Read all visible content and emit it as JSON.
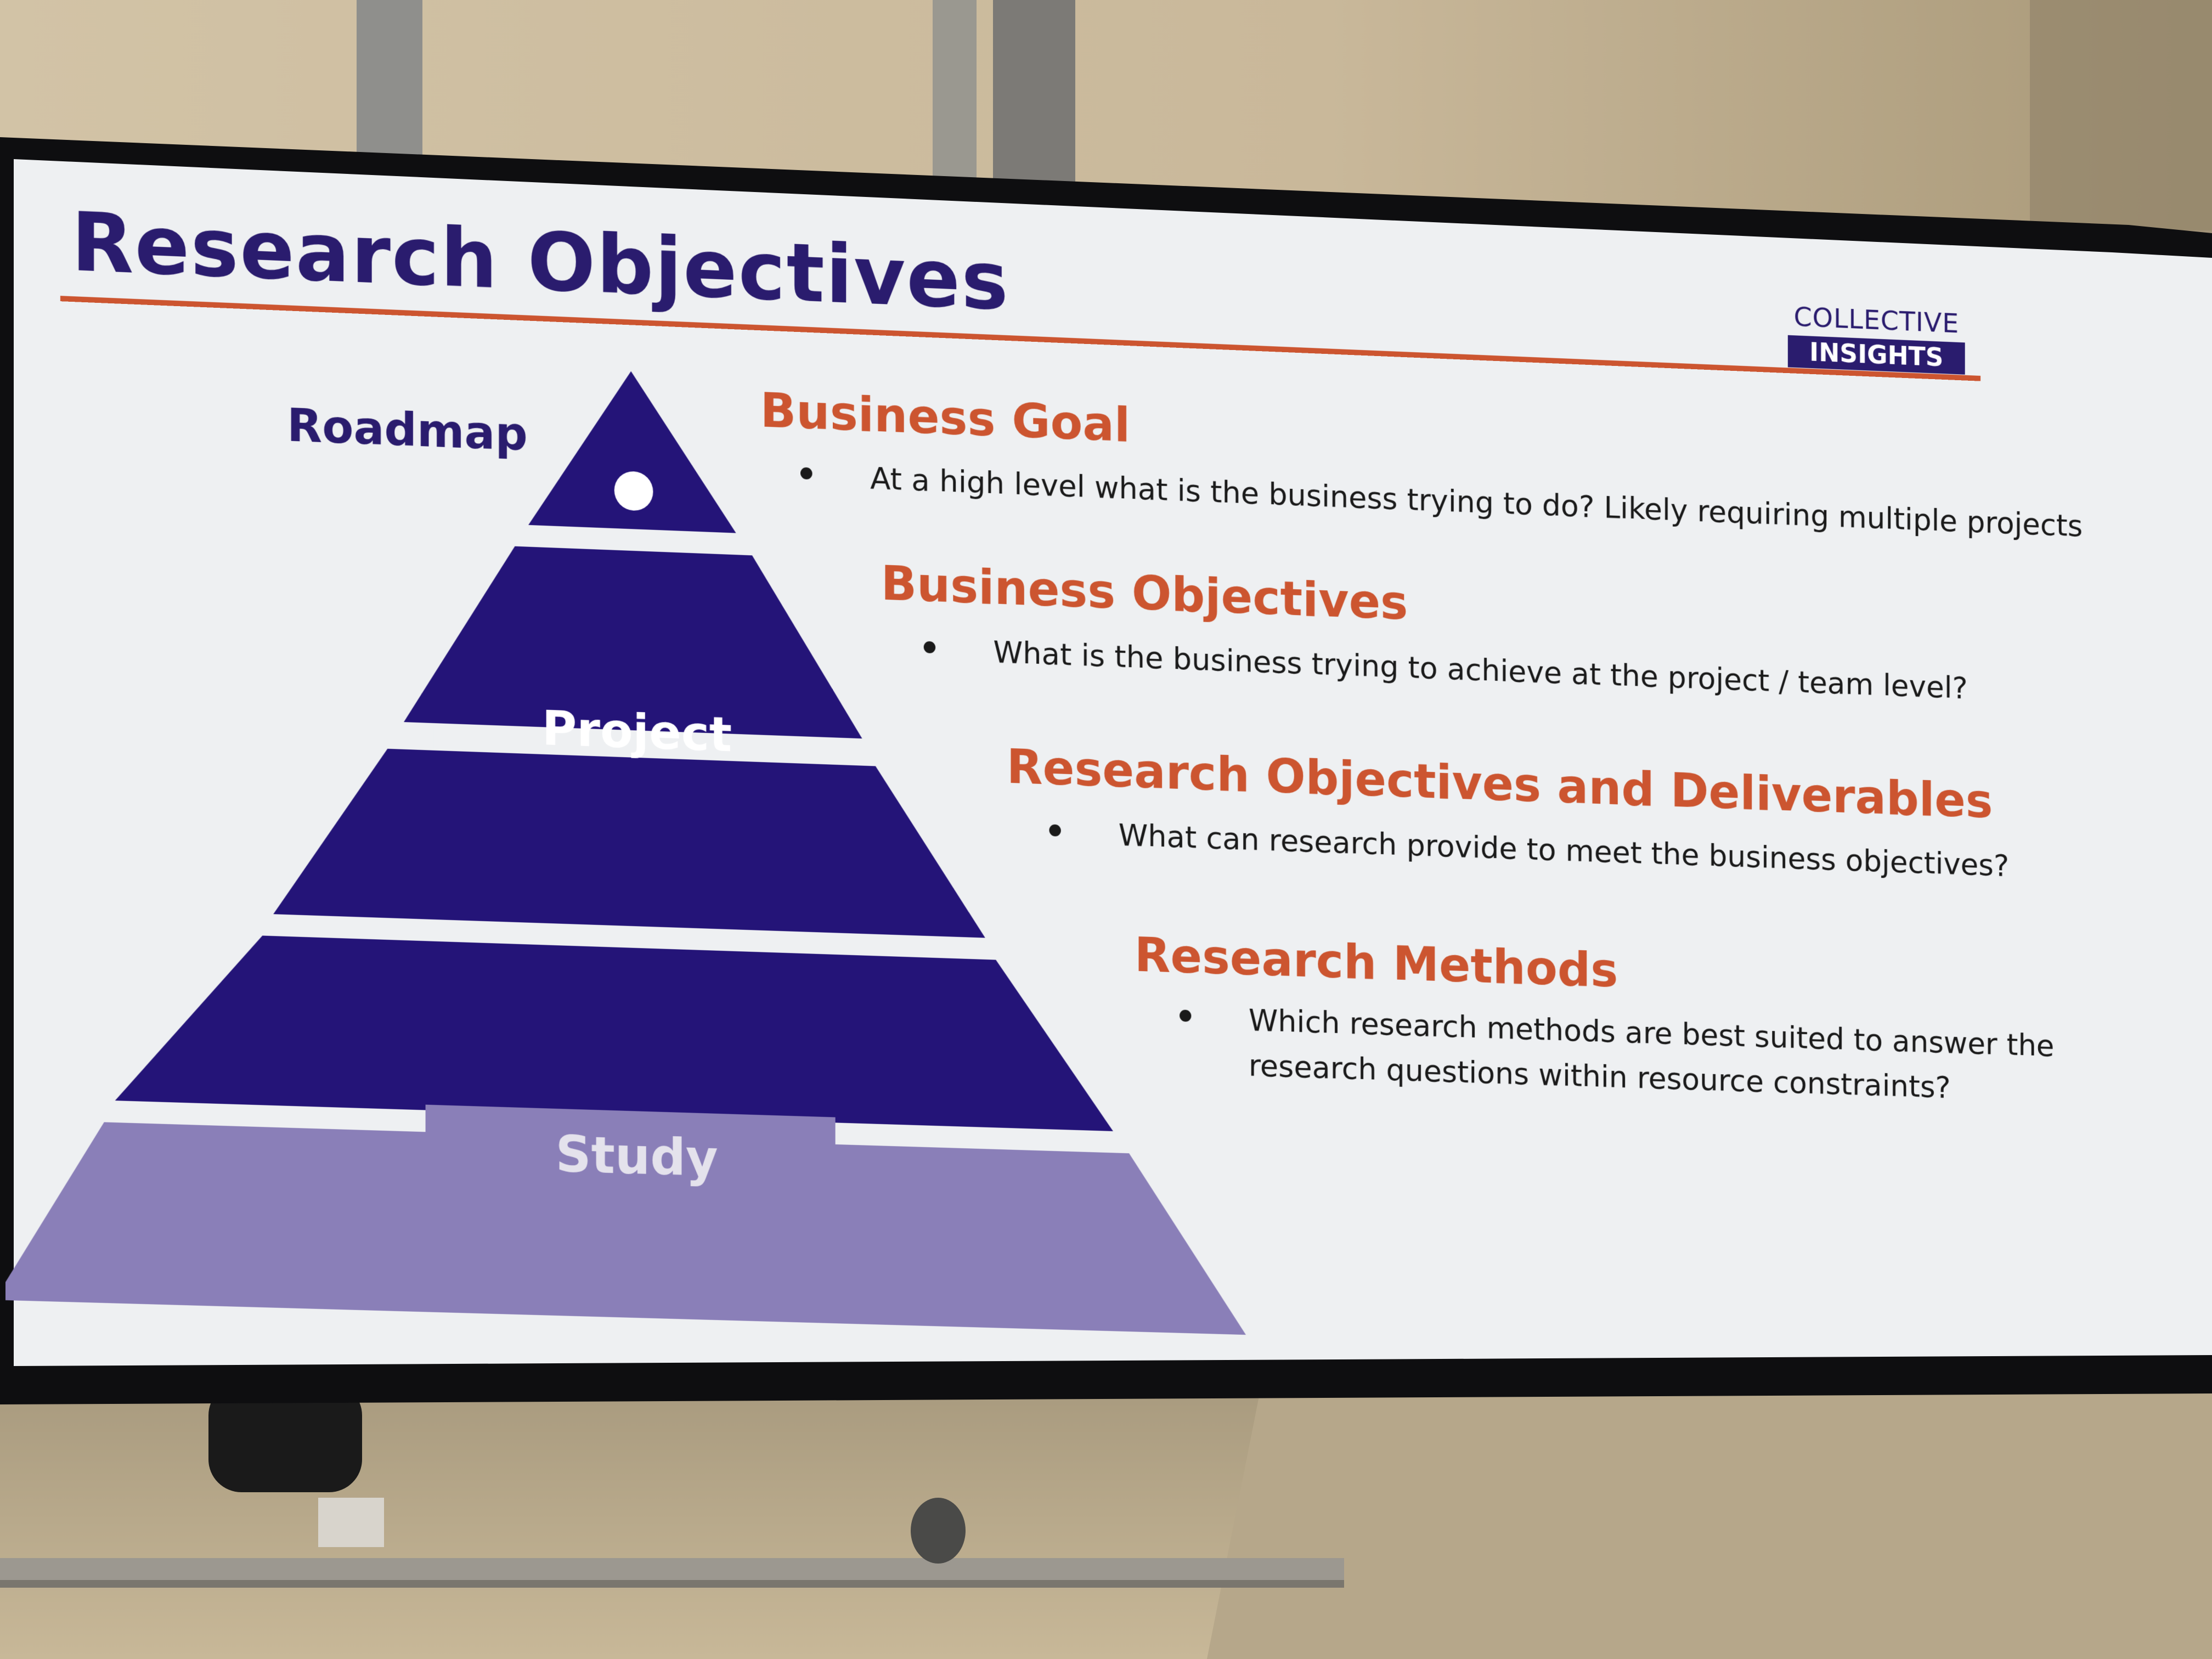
{
  "slide": {
    "title": "Research Objectives",
    "logo": {
      "line1": "COLLECTIVE",
      "line2": "INSIGHTS"
    },
    "pyramid": {
      "top_label": "Roadmap",
      "middle_label": "Project",
      "bottom_label": "Study"
    },
    "sections": [
      {
        "heading": "Business Goal",
        "bullet": "At a high level what is the business trying to do? Likely requiring multiple projects"
      },
      {
        "heading": "Business Objectives",
        "bullet": "What is the business trying to achieve at the project / team level?"
      },
      {
        "heading": "Research Objectives and Deliverables",
        "bullet": "What can research provide to meet the business objectives?"
      },
      {
        "heading": "Research Methods",
        "bullet_line1": "Which research methods are best suited to answer the",
        "bullet_line2": "research questions within resource constraints?"
      }
    ]
  },
  "colors": {
    "dark_purple": "#2a1c6e",
    "pyramid_dark": "#241478",
    "pyramid_light": "#8a7fb8",
    "accent_orange": "#cc5530",
    "screen_bg": "#eef0f2"
  }
}
